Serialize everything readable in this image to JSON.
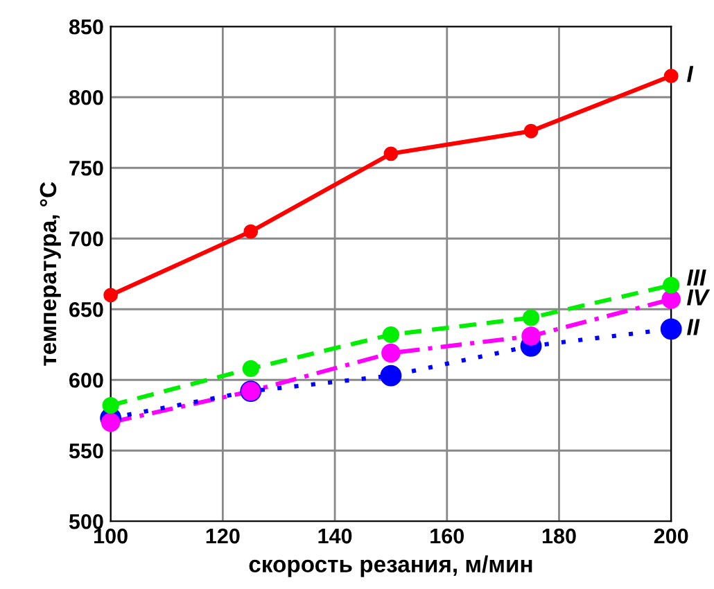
{
  "chart_data": {
    "type": "line",
    "xlabel": "скорость резания, м/мин",
    "ylabel": "температура, °C",
    "x": [
      100,
      125,
      150,
      175,
      200
    ],
    "series": [
      {
        "name": "I",
        "color": "#ff0000",
        "line_style": "solid",
        "values": [
          660,
          705,
          760,
          776,
          815
        ]
      },
      {
        "name": "III",
        "color": "#00ee00",
        "line_style": "dashed",
        "values": [
          582,
          608,
          632,
          644,
          667
        ]
      },
      {
        "name": "IV",
        "color": "#ff00ff",
        "line_style": "dashdot",
        "values": [
          570,
          592,
          619,
          631,
          657
        ]
      },
      {
        "name": "II",
        "color": "#0000ff",
        "line_style": "dotted",
        "values": [
          573,
          592,
          603,
          624,
          636
        ]
      }
    ],
    "xlim": [
      100,
      200
    ],
    "xticks": [
      100,
      120,
      140,
      160,
      180,
      200
    ],
    "ylim": [
      500,
      850
    ],
    "yticks": [
      500,
      550,
      600,
      650,
      700,
      750,
      800,
      850
    ],
    "grid": true,
    "marker": "circle",
    "legend": false
  }
}
